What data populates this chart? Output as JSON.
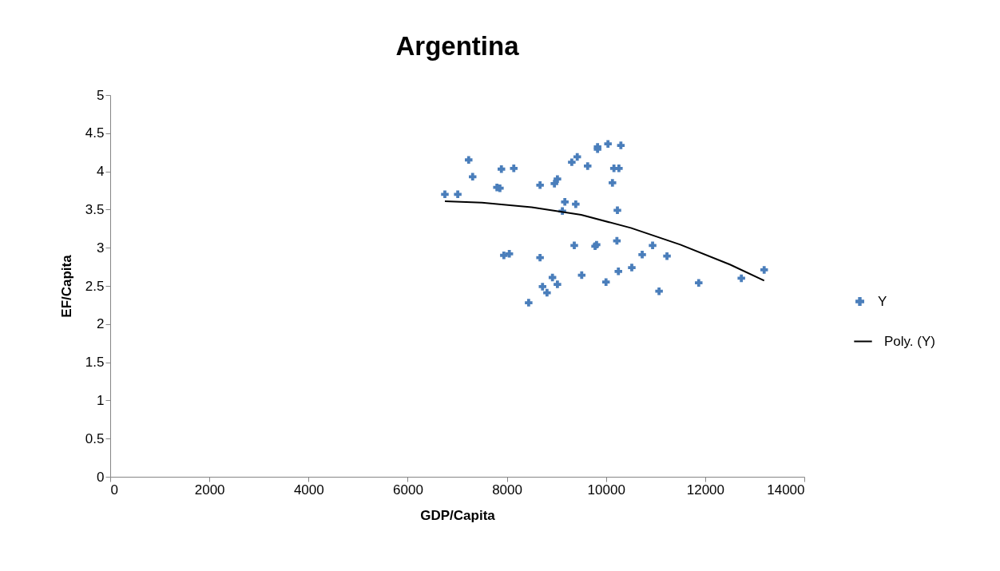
{
  "chart_data": {
    "type": "scatter",
    "title": "Argentina",
    "xlabel": "GDP/Capita",
    "ylabel": "EF/Capita",
    "xlim": [
      0,
      14000
    ],
    "xticks": [
      0,
      2000,
      4000,
      6000,
      8000,
      10000,
      12000,
      14000
    ],
    "ylim": [
      0,
      5
    ],
    "yticks": [
      0,
      0.5,
      1,
      1.5,
      2,
      2.5,
      3,
      3.5,
      4,
      4.5,
      5
    ],
    "grid": false,
    "legend": "right",
    "marker": "cross",
    "series": [
      {
        "name": "Y",
        "color": "#4a7ebb",
        "x": [
          6750,
          7010,
          7230,
          7310,
          7800,
          7860,
          7890,
          8140,
          7940,
          8050,
          8670,
          8670,
          8440,
          8720,
          8810,
          8920,
          9020,
          8960,
          9020,
          9170,
          9120,
          9390,
          9360,
          9310,
          9420,
          9630,
          9510,
          9830,
          9830,
          10040,
          10300,
          10160,
          10260,
          10130,
          10230,
          9780,
          9810,
          10220,
          10000,
          10250,
          10520,
          10940,
          10730,
          11230,
          11070,
          11870,
          12730,
          13190
        ],
        "values": [
          3.7,
          3.7,
          4.15,
          3.93,
          3.79,
          3.78,
          4.03,
          4.04,
          2.9,
          2.92,
          3.82,
          2.87,
          2.28,
          2.49,
          2.41,
          2.61,
          2.52,
          3.84,
          3.9,
          3.6,
          3.48,
          3.57,
          3.03,
          4.12,
          4.19,
          4.07,
          2.64,
          4.32,
          4.29,
          4.36,
          4.34,
          4.04,
          4.04,
          3.85,
          3.49,
          3.02,
          3.04,
          3.09,
          2.55,
          2.69,
          2.74,
          3.03,
          2.91,
          2.89,
          2.43,
          2.54,
          2.6,
          2.71
        ]
      },
      {
        "name": "Poly. (Y)",
        "color": "#000000",
        "type": "line",
        "marker": "none",
        "x": [
          6750,
          7500,
          8500,
          9500,
          10500,
          11500,
          12500,
          13190
        ],
        "values": [
          3.61,
          3.59,
          3.53,
          3.43,
          3.26,
          3.04,
          2.78,
          2.57
        ]
      }
    ]
  }
}
